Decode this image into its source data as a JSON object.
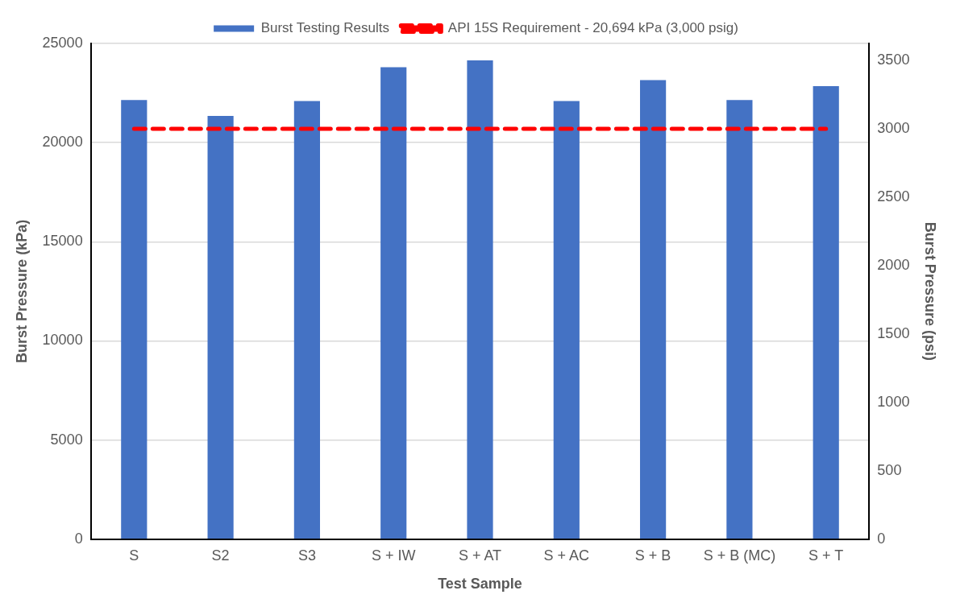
{
  "chart_data": {
    "type": "bar",
    "xlabel": "Test Sample",
    "ylabel": "Burst Pressure (kPa)",
    "y2label": "Burst Pressure (psi)",
    "categories": [
      "S",
      "S2",
      "S3",
      "S + IW",
      "S + AT",
      "S + AC",
      "S + B",
      "S + B (MC)",
      "S + T"
    ],
    "series": [
      {
        "name": "Burst Testing Results",
        "color": "#4472c4",
        "values": [
          22150,
          21350,
          22100,
          23800,
          24150,
          22100,
          23150,
          22150,
          22850
        ]
      },
      {
        "name": "API 15S Requirement - 20,694 kPa (3,000 psig)",
        "type": "line",
        "color": "#ff0000",
        "line_style": "dashed",
        "marker": "none",
        "values": [
          20694,
          20694,
          20694,
          20694,
          20694,
          20694,
          20694,
          20694,
          20694
        ]
      }
    ],
    "ylim": [
      0,
      25000
    ],
    "yticks": [
      0,
      5000,
      10000,
      15000,
      20000,
      25000
    ],
    "y2lim": [
      0,
      3626
    ],
    "y2ticks": [
      0,
      500,
      1000,
      1500,
      2000,
      2500,
      3000,
      3500
    ],
    "grid": "y",
    "legend": "top"
  }
}
